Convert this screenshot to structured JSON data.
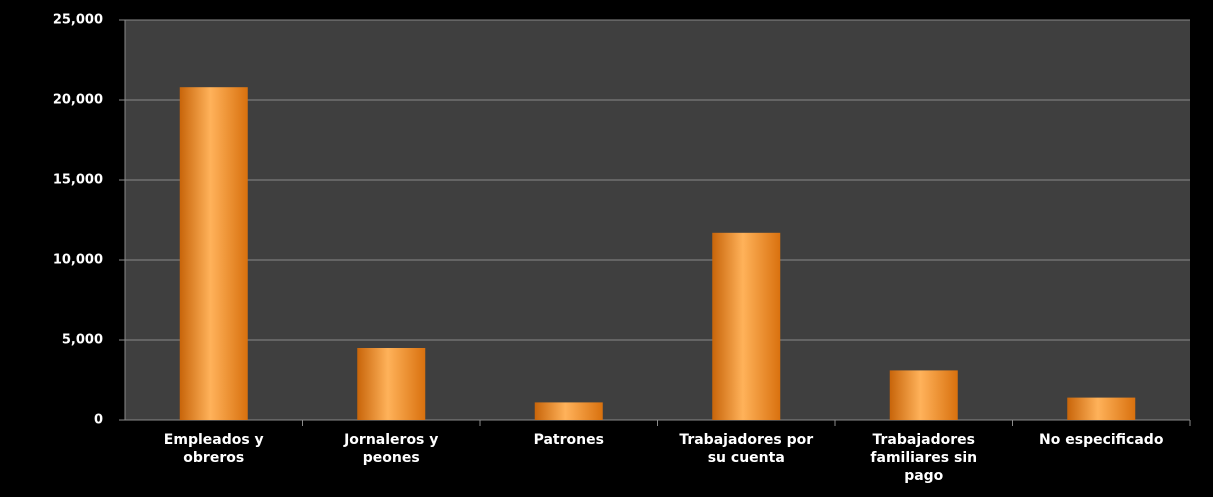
{
  "chart_data": {
    "type": "bar",
    "categories": [
      "Empleados y obreros",
      "Jornaleros y peones",
      "Patrones",
      "Trabajadores por su cuenta",
      "Trabajadores familiares sin pago",
      "No especificado"
    ],
    "values": [
      20800,
      4500,
      1100,
      11700,
      3100,
      1400
    ],
    "color": "#f7931e",
    "ylim": [
      0,
      25000
    ],
    "yticks": [
      0,
      {
        "value": 5000,
        "label": "5,000"
      },
      {
        "value": 10000,
        "label": "10,000"
      },
      {
        "value": 15000,
        "label": "15,000"
      },
      {
        "value": 20000,
        "label": "20,000"
      },
      {
        "value": 25000,
        "label": "25,000"
      }
    ],
    "grid": true
  }
}
